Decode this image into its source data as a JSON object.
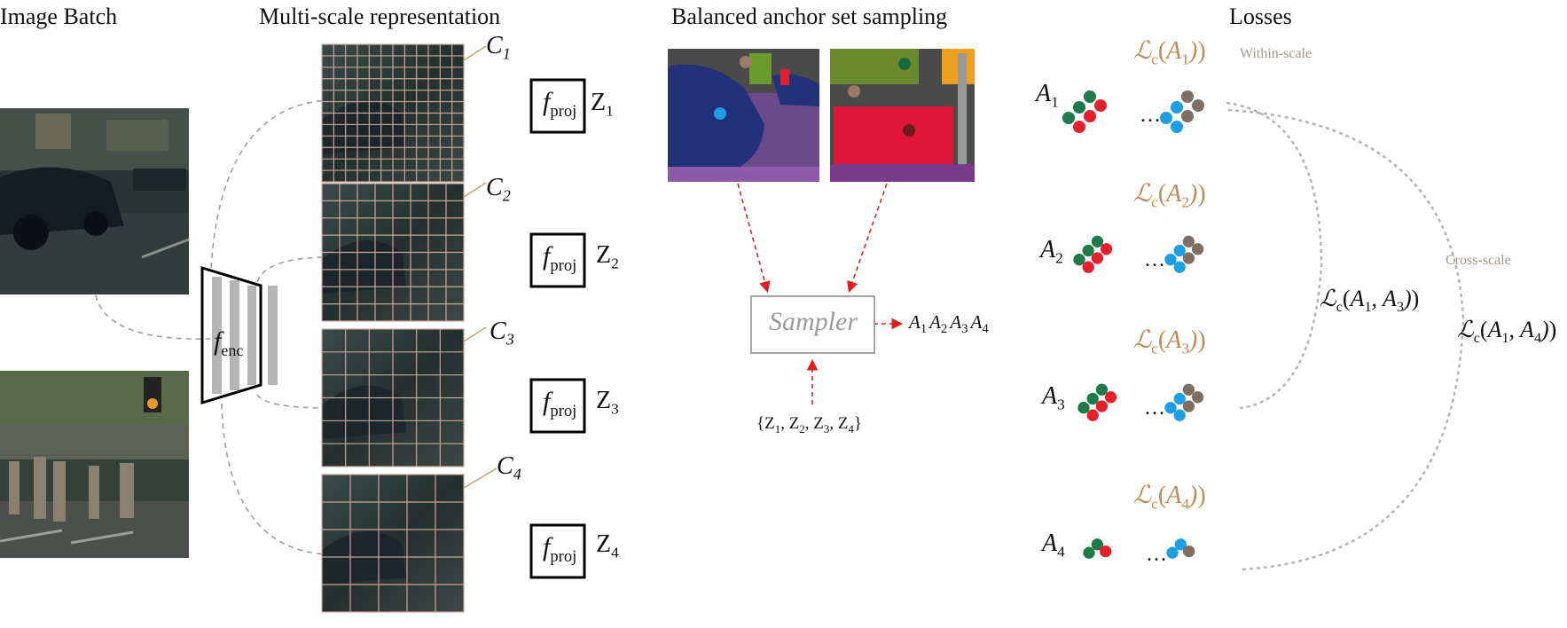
{
  "headings": {
    "image_batch": "Image Batch",
    "multiscale": "Multi-scale representation",
    "sampling": "Balanced anchor set sampling",
    "losses": "Losses"
  },
  "encoder": {
    "f": "f",
    "sub": "enc"
  },
  "projector": {
    "f": "f",
    "sub": "proj"
  },
  "scales": [
    {
      "c": "C",
      "c_sub": "1",
      "z": "Z",
      "z_sub": "1",
      "grid_div": 12
    },
    {
      "c": "C",
      "c_sub": "2",
      "z": "Z",
      "z_sub": "2",
      "grid_div": 8
    },
    {
      "c": "C",
      "c_sub": "3",
      "z": "Z",
      "z_sub": "3",
      "grid_div": 6
    },
    {
      "c": "C",
      "c_sub": "4",
      "z": "Z",
      "z_sub": "4",
      "grid_div": 5
    }
  ],
  "sampler": {
    "label": "Sampler",
    "output": [
      "A",
      "1",
      "A",
      "2",
      "A",
      "3",
      "A",
      "4"
    ],
    "input": [
      "{Z",
      "1",
      ", Z",
      "2",
      ", Z",
      "3",
      ", Z",
      "4",
      "}"
    ]
  },
  "anchors": [
    {
      "a": "A",
      "sub": "1",
      "loss": [
        "ℒ",
        "c",
        "(A",
        "1",
        ")"
      ]
    },
    {
      "a": "A",
      "sub": "2",
      "loss": [
        "ℒ",
        "c",
        "(A",
        "2",
        ")"
      ]
    },
    {
      "a": "A",
      "sub": "3",
      "loss": [
        "ℒ",
        "c",
        "(A",
        "3",
        ")"
      ]
    },
    {
      "a": "A",
      "sub": "4",
      "loss": [
        "ℒ",
        "c",
        "(A",
        "4",
        ")"
      ]
    }
  ],
  "ellipsis": "…",
  "within_scale": "Within-scale",
  "cross_scale": "Cross-scale",
  "cross_loss_13": [
    "ℒ",
    "c",
    "(A",
    "1",
    ", A",
    "3",
    ")"
  ],
  "cross_loss_14": [
    "ℒ",
    "c",
    "(A",
    "1",
    ", A",
    "4",
    ")"
  ],
  "colors": {
    "loss_text": "#c08a55",
    "label_gray": "#a6968b",
    "dash_gray": "#9e9e9e",
    "arrow_red": "#e0201f",
    "dot_green": "#1f7a4a",
    "dot_red": "#e2202e",
    "dot_blue": "#1f9fe0",
    "dot_brown": "#7f6e62",
    "grid_line": "#c9a59a",
    "tag_line": "#c9a070"
  }
}
